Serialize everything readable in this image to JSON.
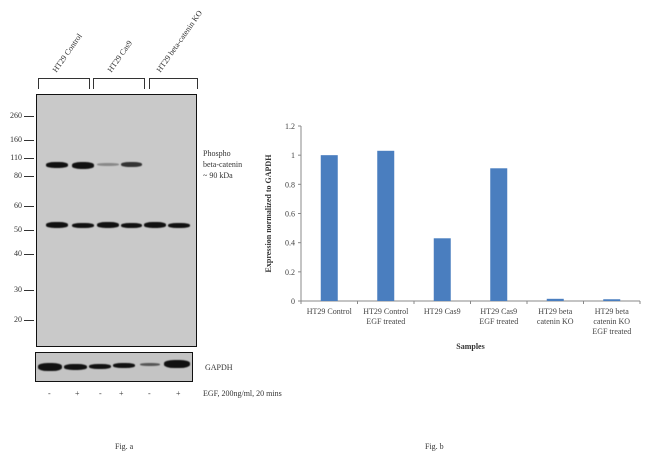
{
  "blot": {
    "groups": [
      "HT29 Control",
      "HT29 Cas9",
      "HT29 beta-catenin KO"
    ],
    "mw_markers": [
      "260",
      "160",
      "110",
      "80",
      "60",
      "50",
      "40",
      "30",
      "20"
    ],
    "band_label": [
      "Phospho",
      "beta-catenin",
      "~ 90 kDa"
    ],
    "loading_label": "GAPDH",
    "treatment_signs": [
      "-",
      "+",
      "-",
      "+",
      "-",
      "+"
    ],
    "treatment_label": "EGF,  200ng/ml, 20 mins",
    "caption": "Fig. a"
  },
  "chart_data": {
    "type": "bar",
    "categories": [
      "HT29 Control",
      "HT29 Control EGF treated",
      "HT29 Cas9",
      "HT29 Cas9 EGF treated",
      "HT29 beta catenin KO",
      "HT29 beta catenin KO EGF treated"
    ],
    "category_lines": [
      [
        "HT29 Control"
      ],
      [
        "HT29 Control",
        "EGF treated"
      ],
      [
        "HT29 Cas9"
      ],
      [
        "HT29 Cas9",
        "EGF treated"
      ],
      [
        "HT29 beta",
        "catenin KO"
      ],
      [
        "HT29 beta",
        "catenin KO",
        "EGF treated"
      ]
    ],
    "values": [
      1.0,
      1.03,
      0.43,
      0.91,
      0.015,
      0.012
    ],
    "ylabel": "Expression normalized to GAPDH",
    "xlabel": "Samples",
    "ylim": [
      0,
      1.2
    ],
    "yticks": [
      "0",
      "0.2",
      "0.4",
      "0.6",
      "0.8",
      "1",
      "1.2"
    ],
    "bar_color": "#4a7ebf",
    "grid": false,
    "caption": "Fig. b"
  }
}
